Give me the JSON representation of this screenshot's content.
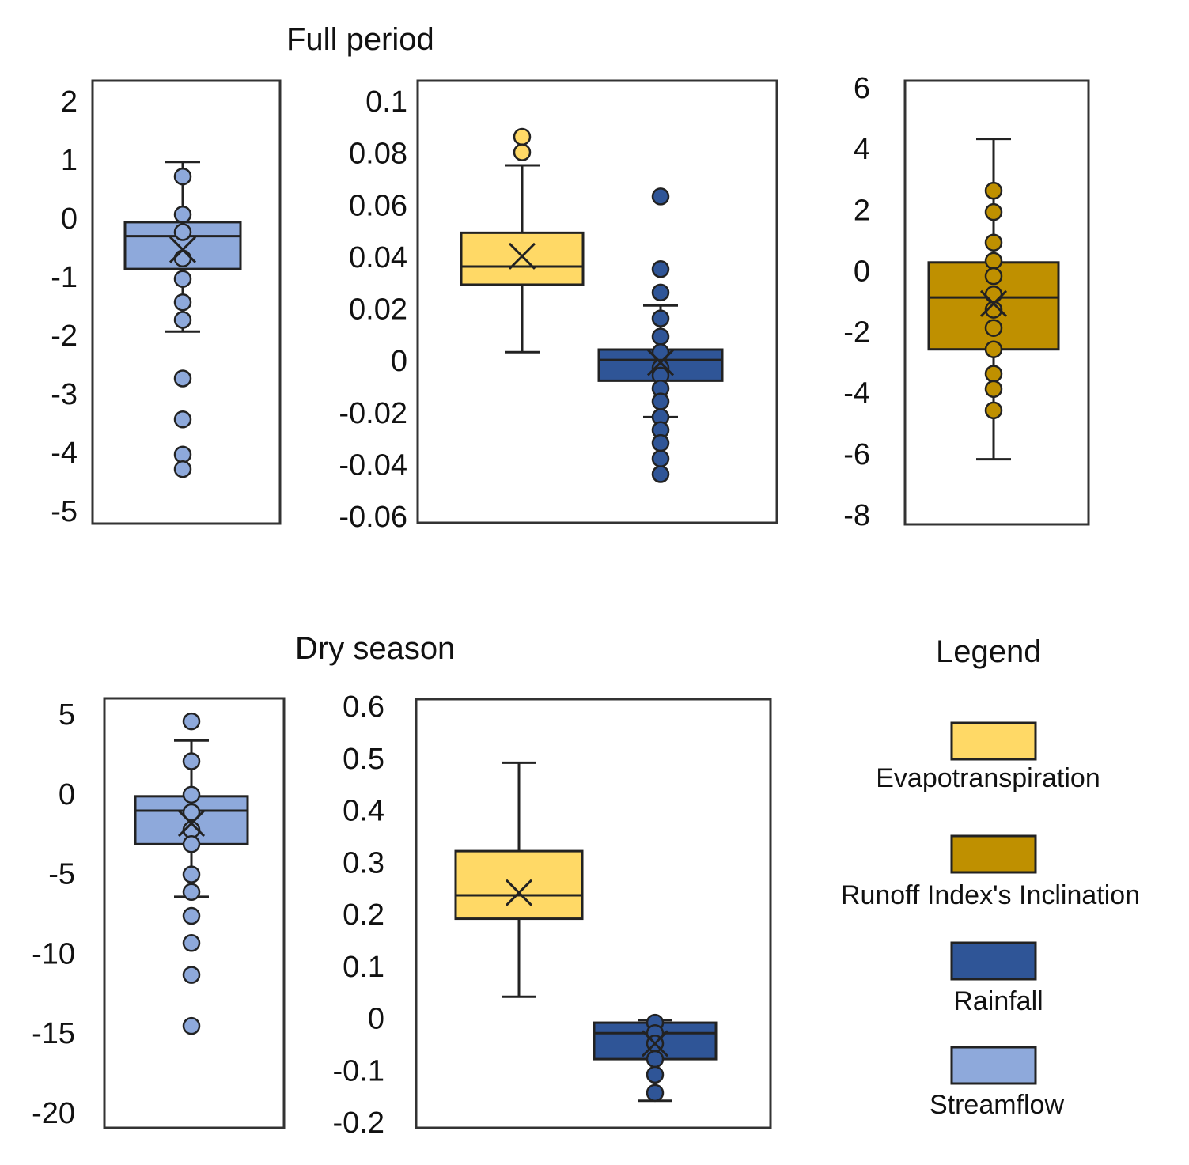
{
  "sections": {
    "full_title": "Full period",
    "dry_title": "Dry season"
  },
  "legend": {
    "title": "Legend",
    "items": [
      {
        "label": "Evapotranspiration",
        "color": "#FFD966"
      },
      {
        "label": "Runoff Index's Inclination",
        "color": "#BF9000"
      },
      {
        "label": "Rainfall",
        "color": "#2F5597"
      },
      {
        "label": "Streamflow",
        "color": "#8EA9DB"
      }
    ]
  },
  "colors": {
    "evapotranspiration": "#FFD966",
    "runoff": "#BF9000",
    "rainfall": "#2F5597",
    "streamflow": "#8EA9DB",
    "edge": "#222222"
  },
  "chart_data": [
    {
      "id": "full-streamflow",
      "type": "box",
      "section": "Full period",
      "ylim": [
        -5,
        2
      ],
      "yticks": [
        "2",
        "1",
        "0",
        "-1",
        "-2",
        "-3",
        "-4",
        "-5"
      ],
      "boxes": [
        {
          "series": "Streamflow",
          "color": "#8EA9DB",
          "whisker_high": 0.95,
          "q3": -0.08,
          "median": -0.32,
          "mean": -0.55,
          "q1": -0.88,
          "whisker_low": -1.95,
          "points": [
            0.7,
            0.05,
            -0.25,
            -0.7,
            -1.05,
            -1.45,
            -1.75,
            -2.75,
            -3.45,
            -4.05,
            -4.3
          ]
        }
      ]
    },
    {
      "id": "full-et-rain",
      "type": "box",
      "section": "Full period",
      "ylim": [
        -0.06,
        0.1
      ],
      "yticks": [
        "0.1",
        "0.08",
        "0.06",
        "0.04",
        "0.02",
        "0",
        "-0.02",
        "-0.04",
        "-0.06"
      ],
      "boxes": [
        {
          "series": "Evapotranspiration",
          "color": "#FFD966",
          "whisker_high": 0.075,
          "q3": 0.049,
          "median": 0.036,
          "mean": 0.04,
          "q1": 0.029,
          "whisker_low": 0.003,
          "points": [
            0.086,
            0.08
          ]
        },
        {
          "series": "Rainfall",
          "color": "#2F5597",
          "whisker_high": 0.021,
          "q3": 0.004,
          "median": 0.0,
          "mean": -0.001,
          "q1": -0.008,
          "whisker_low": -0.022,
          "points": [
            0.063,
            0.035,
            0.026,
            0.016,
            0.009,
            0.003,
            -0.003,
            -0.006,
            -0.011,
            -0.016,
            -0.022,
            -0.027,
            -0.032,
            -0.038,
            -0.044
          ]
        }
      ]
    },
    {
      "id": "full-runoff",
      "type": "box",
      "section": "Full period",
      "ylim": [
        -8,
        6
      ],
      "yticks": [
        "6",
        "4",
        "2",
        "0",
        "-2",
        "-4",
        "-6",
        "-8"
      ],
      "boxes": [
        {
          "series": "Runoff Index's Inclination",
          "color": "#BF9000",
          "whisker_high": 4.3,
          "q3": 0.25,
          "median": -0.9,
          "mean": -1.1,
          "q1": -2.6,
          "whisker_low": -6.2,
          "points": [
            2.6,
            1.9,
            0.9,
            0.3,
            -0.2,
            -0.8,
            -1.3,
            -1.9,
            -2.6,
            -3.4,
            -3.9,
            -4.6
          ]
        }
      ]
    },
    {
      "id": "dry-streamflow",
      "type": "box",
      "section": "Dry season",
      "ylim": [
        -20,
        5
      ],
      "yticks": [
        "5",
        "0",
        "-5",
        "-10",
        "-15",
        "-20"
      ],
      "boxes": [
        {
          "series": "Streamflow",
          "color": "#8EA9DB",
          "whisker_high": 3.3,
          "q3": -0.2,
          "median": -1.1,
          "mean": -1.9,
          "q1": -3.2,
          "whisker_low": -6.5,
          "points": [
            4.5,
            2.0,
            -0.1,
            -1.2,
            -2.3,
            -3.2,
            -5.1,
            -6.2,
            -7.7,
            -9.4,
            -11.4,
            -14.6
          ]
        }
      ]
    },
    {
      "id": "dry-et-rain",
      "type": "box",
      "section": "Dry season",
      "ylim": [
        -0.2,
        0.6
      ],
      "yticks": [
        "0.6",
        "0.5",
        "0.4",
        "0.3",
        "0.2",
        "0.1",
        "0",
        "-0.1",
        "-0.2"
      ],
      "boxes": [
        {
          "series": "Evapotranspiration",
          "color": "#FFD966",
          "whisker_high": 0.49,
          "q3": 0.32,
          "median": 0.235,
          "mean": 0.24,
          "q1": 0.19,
          "whisker_low": 0.04,
          "points": []
        },
        {
          "series": "Rainfall",
          "color": "#2F5597",
          "whisker_high": -0.005,
          "q3": -0.01,
          "median": -0.03,
          "mean": -0.05,
          "q1": -0.08,
          "whisker_low": -0.16,
          "points": [
            -0.01,
            -0.03,
            -0.05,
            -0.08,
            -0.11,
            -0.145
          ]
        }
      ]
    }
  ]
}
